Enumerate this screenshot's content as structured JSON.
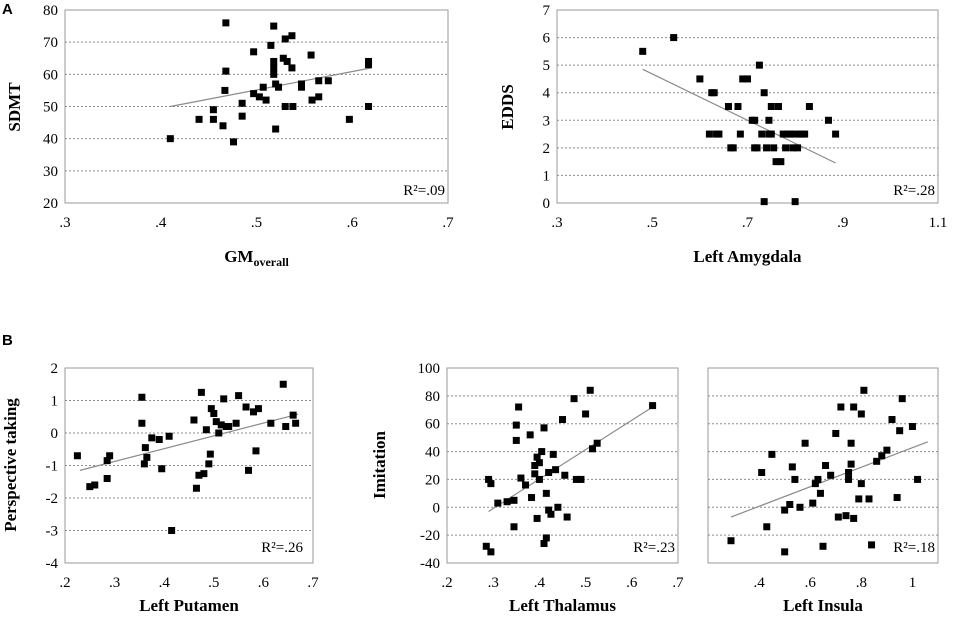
{
  "panel_labels": {
    "a": "A",
    "b": "B"
  },
  "chart_data": [
    {
      "type": "scatter",
      "id": "sdmt",
      "ylabel": "SDMT",
      "xlabel_main": "GM",
      "xlabel_sub": "overall",
      "annotation": "R²=.09",
      "xlim": [
        0.3,
        0.7
      ],
      "ylim": [
        20,
        80
      ],
      "xticks": [
        0.3,
        0.4,
        0.5,
        0.6,
        0.7
      ],
      "xtick_labels": [
        ".3",
        ".4",
        ".5",
        ".6",
        ".7"
      ],
      "yticks": [
        20,
        30,
        40,
        50,
        60,
        70,
        80
      ],
      "ytick_labels": [
        "20",
        "30",
        "40",
        "50",
        "60",
        "70",
        "80"
      ],
      "trend": [
        [
          0.41,
          50
        ],
        [
          0.62,
          62
        ]
      ],
      "points": [
        [
          0.41,
          40
        ],
        [
          0.44,
          46
        ],
        [
          0.455,
          46
        ],
        [
          0.455,
          49
        ],
        [
          0.465,
          44
        ],
        [
          0.467,
          55
        ],
        [
          0.468,
          61
        ],
        [
          0.468,
          76
        ],
        [
          0.476,
          39
        ],
        [
          0.485,
          51
        ],
        [
          0.485,
          47
        ],
        [
          0.497,
          54
        ],
        [
          0.497,
          67
        ],
        [
          0.503,
          53
        ],
        [
          0.507,
          56
        ],
        [
          0.51,
          52
        ],
        [
          0.515,
          69
        ],
        [
          0.518,
          75
        ],
        [
          0.518,
          64
        ],
        [
          0.518,
          62
        ],
        [
          0.518,
          60
        ],
        [
          0.52,
          57
        ],
        [
          0.52,
          43
        ],
        [
          0.523,
          56
        ],
        [
          0.528,
          65
        ],
        [
          0.53,
          71
        ],
        [
          0.53,
          50
        ],
        [
          0.532,
          64
        ],
        [
          0.537,
          72
        ],
        [
          0.537,
          62
        ],
        [
          0.538,
          50
        ],
        [
          0.547,
          56
        ],
        [
          0.547,
          57
        ],
        [
          0.557,
          66
        ],
        [
          0.558,
          52
        ],
        [
          0.565,
          53
        ],
        [
          0.565,
          58
        ],
        [
          0.575,
          58
        ],
        [
          0.597,
          46
        ],
        [
          0.617,
          63
        ],
        [
          0.617,
          64
        ],
        [
          0.617,
          50
        ]
      ]
    },
    {
      "type": "scatter",
      "id": "edds",
      "ylabel": "EDDS",
      "xlabel": "Left Amygdala",
      "annotation": "R²=.28",
      "xlim": [
        0.3,
        1.1
      ],
      "ylim": [
        0,
        7
      ],
      "xticks": [
        0.3,
        0.5,
        0.7,
        0.9,
        1.1
      ],
      "xtick_labels": [
        ".3",
        ".5",
        ".7",
        ".9",
        "1.1"
      ],
      "yticks": [
        0,
        1,
        2,
        3,
        4,
        5,
        6,
        7
      ],
      "ytick_labels": [
        "0",
        "1",
        "2",
        "3",
        "4",
        "5",
        "6",
        "7"
      ],
      "trend": [
        [
          0.48,
          4.85
        ],
        [
          0.885,
          1.45
        ]
      ],
      "points": [
        [
          0.48,
          5.5
        ],
        [
          0.545,
          6
        ],
        [
          0.6,
          4.5
        ],
        [
          0.62,
          2.5
        ],
        [
          0.625,
          4
        ],
        [
          0.63,
          4
        ],
        [
          0.635,
          2.5
        ],
        [
          0.64,
          2.5
        ],
        [
          0.66,
          3.5
        ],
        [
          0.665,
          2
        ],
        [
          0.67,
          2
        ],
        [
          0.68,
          3.5
        ],
        [
          0.685,
          2.5
        ],
        [
          0.69,
          4.5
        ],
        [
          0.7,
          4.5
        ],
        [
          0.71,
          3
        ],
        [
          0.715,
          2
        ],
        [
          0.72,
          2
        ],
        [
          0.725,
          5
        ],
        [
          0.73,
          2.5
        ],
        [
          0.735,
          4
        ],
        [
          0.74,
          2
        ],
        [
          0.745,
          2.5
        ],
        [
          0.75,
          3.5
        ],
        [
          0.75,
          2.5
        ],
        [
          0.755,
          2
        ],
        [
          0.76,
          1.5
        ],
        [
          0.765,
          3.5
        ],
        [
          0.77,
          1.5
        ],
        [
          0.775,
          2.5
        ],
        [
          0.78,
          2
        ],
        [
          0.785,
          2.5
        ],
        [
          0.79,
          2.5
        ],
        [
          0.795,
          2
        ],
        [
          0.8,
          2.5
        ],
        [
          0.805,
          2
        ],
        [
          0.81,
          2.5
        ],
        [
          0.815,
          2.5
        ],
        [
          0.82,
          2.5
        ],
        [
          0.83,
          3.5
        ],
        [
          0.87,
          3
        ],
        [
          0.885,
          2.5
        ],
        [
          0.735,
          0.05
        ],
        [
          0.8,
          0.05
        ],
        [
          0.715,
          3
        ],
        [
          0.745,
          3
        ]
      ]
    },
    {
      "type": "scatter",
      "id": "perspective",
      "ylabel": "Perspective taking",
      "xlabel": "Left Putamen",
      "annotation": "R²=.26",
      "xlim": [
        0.2,
        0.7
      ],
      "ylim": [
        -4,
        2
      ],
      "xticks": [
        0.2,
        0.3,
        0.4,
        0.5,
        0.6,
        0.7
      ],
      "xtick_labels": [
        ".2",
        ".3",
        ".4",
        ".5",
        ".6",
        ".7"
      ],
      "yticks": [
        -4,
        -3,
        -2,
        -1,
        0,
        1,
        2
      ],
      "ytick_labels": [
        "-4",
        "-3",
        "-2",
        "-1",
        "0",
        "1",
        "2"
      ],
      "trend": [
        [
          0.23,
          -1.15
        ],
        [
          0.67,
          0.58
        ]
      ],
      "points": [
        [
          0.225,
          -0.7
        ],
        [
          0.25,
          -1.65
        ],
        [
          0.26,
          -1.6
        ],
        [
          0.285,
          -1.4
        ],
        [
          0.285,
          -0.85
        ],
        [
          0.29,
          -0.7
        ],
        [
          0.355,
          1.1
        ],
        [
          0.355,
          0.3
        ],
        [
          0.36,
          -0.95
        ],
        [
          0.362,
          -0.45
        ],
        [
          0.365,
          -0.75
        ],
        [
          0.375,
          -0.15
        ],
        [
          0.39,
          -0.2
        ],
        [
          0.395,
          -1.1
        ],
        [
          0.41,
          -0.1
        ],
        [
          0.415,
          -3.0
        ],
        [
          0.46,
          0.4
        ],
        [
          0.465,
          -1.7
        ],
        [
          0.47,
          -1.3
        ],
        [
          0.475,
          1.25
        ],
        [
          0.48,
          -1.25
        ],
        [
          0.485,
          0.1
        ],
        [
          0.49,
          -0.95
        ],
        [
          0.493,
          -0.65
        ],
        [
          0.495,
          0.75
        ],
        [
          0.5,
          0.6
        ],
        [
          0.505,
          0.35
        ],
        [
          0.51,
          0.0
        ],
        [
          0.515,
          0.25
        ],
        [
          0.52,
          1.05
        ],
        [
          0.525,
          0.2
        ],
        [
          0.53,
          0.2
        ],
        [
          0.545,
          0.3
        ],
        [
          0.55,
          1.15
        ],
        [
          0.565,
          0.8
        ],
        [
          0.57,
          -1.15
        ],
        [
          0.58,
          0.65
        ],
        [
          0.585,
          -0.55
        ],
        [
          0.59,
          0.75
        ],
        [
          0.615,
          0.3
        ],
        [
          0.64,
          1.5
        ],
        [
          0.645,
          0.2
        ],
        [
          0.66,
          0.55
        ],
        [
          0.665,
          0.3
        ]
      ]
    },
    {
      "type": "scatter",
      "id": "imitation",
      "ylabel": "Imitation",
      "xlabel": "Left Thalamus",
      "annotation": "R²=.23",
      "xlim": [
        0.2,
        0.7
      ],
      "ylim": [
        -40,
        100
      ],
      "xticks": [
        0.2,
        0.3,
        0.4,
        0.5,
        0.6,
        0.7
      ],
      "xtick_labels": [
        ".2",
        ".3",
        ".4",
        ".5",
        ".6",
        ".7"
      ],
      "yticks": [
        -40,
        -20,
        0,
        20,
        40,
        60,
        80,
        100
      ],
      "ytick_labels": [
        "-40",
        "-20",
        "0",
        "20",
        "40",
        "60",
        "80",
        "100"
      ],
      "trend": [
        [
          0.29,
          -3
        ],
        [
          0.645,
          72
        ]
      ],
      "points": [
        [
          0.285,
          -28
        ],
        [
          0.29,
          20
        ],
        [
          0.295,
          -32
        ],
        [
          0.295,
          17
        ],
        [
          0.31,
          3
        ],
        [
          0.33,
          4
        ],
        [
          0.345,
          -14
        ],
        [
          0.345,
          5
        ],
        [
          0.35,
          48
        ],
        [
          0.35,
          59
        ],
        [
          0.355,
          72
        ],
        [
          0.36,
          21
        ],
        [
          0.37,
          16
        ],
        [
          0.38,
          52
        ],
        [
          0.383,
          7
        ],
        [
          0.39,
          24
        ],
        [
          0.39,
          30
        ],
        [
          0.395,
          36
        ],
        [
          0.395,
          -8
        ],
        [
          0.4,
          20
        ],
        [
          0.4,
          32
        ],
        [
          0.405,
          40
        ],
        [
          0.41,
          57
        ],
        [
          0.41,
          -26
        ],
        [
          0.415,
          -22
        ],
        [
          0.415,
          10
        ],
        [
          0.42,
          -2
        ],
        [
          0.42,
          25
        ],
        [
          0.425,
          -5
        ],
        [
          0.43,
          38
        ],
        [
          0.435,
          27
        ],
        [
          0.44,
          0
        ],
        [
          0.45,
          63
        ],
        [
          0.455,
          23
        ],
        [
          0.46,
          -7
        ],
        [
          0.475,
          78
        ],
        [
          0.48,
          20
        ],
        [
          0.49,
          20
        ],
        [
          0.5,
          67
        ],
        [
          0.51,
          84
        ],
        [
          0.515,
          42
        ],
        [
          0.525,
          46
        ],
        [
          0.645,
          73
        ]
      ]
    },
    {
      "type": "scatter",
      "id": "insula",
      "ylabel": "",
      "xlabel": "Left Insula",
      "annotation": "R²=.18",
      "xlim": [
        0.2,
        1.1
      ],
      "ylim": [
        -40,
        100
      ],
      "xticks": [
        0.4,
        0.6,
        0.8,
        1.0
      ],
      "xtick_labels": [
        ".4",
        ".6",
        ".8",
        "1"
      ],
      "yticks": [
        -40,
        -20,
        0,
        20,
        40,
        60,
        80,
        100
      ],
      "ytick_labels": [],
      "trend": [
        [
          0.29,
          -7
        ],
        [
          1.06,
          47
        ]
      ],
      "points": [
        [
          0.29,
          -24
        ],
        [
          0.41,
          25
        ],
        [
          0.43,
          -14
        ],
        [
          0.45,
          38
        ],
        [
          0.5,
          -32
        ],
        [
          0.5,
          -2
        ],
        [
          0.52,
          2
        ],
        [
          0.53,
          29
        ],
        [
          0.54,
          20
        ],
        [
          0.56,
          0
        ],
        [
          0.58,
          46
        ],
        [
          0.61,
          3
        ],
        [
          0.62,
          17
        ],
        [
          0.63,
          20
        ],
        [
          0.64,
          10
        ],
        [
          0.65,
          -28
        ],
        [
          0.66,
          30
        ],
        [
          0.68,
          23
        ],
        [
          0.7,
          53
        ],
        [
          0.71,
          -7
        ],
        [
          0.72,
          72
        ],
        [
          0.74,
          -6
        ],
        [
          0.75,
          20
        ],
        [
          0.75,
          25
        ],
        [
          0.76,
          31
        ],
        [
          0.76,
          46
        ],
        [
          0.77,
          -8
        ],
        [
          0.77,
          72
        ],
        [
          0.79,
          6
        ],
        [
          0.8,
          17
        ],
        [
          0.8,
          67
        ],
        [
          0.81,
          84
        ],
        [
          0.83,
          6
        ],
        [
          0.84,
          -27
        ],
        [
          0.86,
          33
        ],
        [
          0.88,
          37
        ],
        [
          0.9,
          41
        ],
        [
          0.92,
          63
        ],
        [
          0.94,
          7
        ],
        [
          0.95,
          55
        ],
        [
          0.96,
          78
        ],
        [
          1.0,
          58
        ],
        [
          1.02,
          20
        ]
      ]
    }
  ]
}
